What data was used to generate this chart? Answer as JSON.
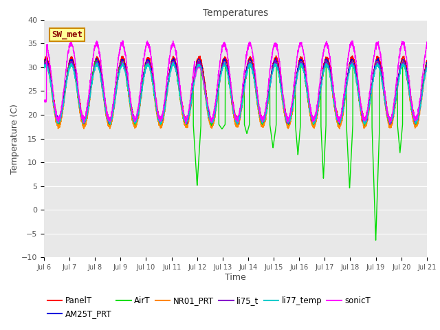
{
  "title": "Temperatures",
  "xlabel": "Time",
  "ylabel": "Temperature (C)",
  "ylim": [
    -10,
    40
  ],
  "xlim_start": 6,
  "xlim_end": 21,
  "x_tick_labels": [
    "Jul 6",
    "Jul 7",
    "Jul 8",
    "Jul 9",
    "Jul 10",
    "Jul 11",
    "Jul 12",
    "Jul 13",
    "Jul 14",
    "Jul 15",
    "Jul 16",
    "Jul 17",
    "Jul 18",
    "Jul 19",
    "Jul 20",
    "Jul 21"
  ],
  "bg_color": "#e8e8e8",
  "fig_color": "#ffffff",
  "grid_color": "#ffffff",
  "yticks": [
    -10,
    -5,
    0,
    5,
    10,
    15,
    20,
    25,
    30,
    35,
    40
  ],
  "series": {
    "PanelT": {
      "color": "#ff0000",
      "lw": 1.0
    },
    "AM25T_PRT": {
      "color": "#0000dd",
      "lw": 1.0
    },
    "AirT": {
      "color": "#00dd00",
      "lw": 1.0
    },
    "NR01_PRT": {
      "color": "#ff8800",
      "lw": 1.0
    },
    "li75_t": {
      "color": "#8800cc",
      "lw": 1.0
    },
    "li77_temp": {
      "color": "#00cccc",
      "lw": 1.0
    },
    "sonicT": {
      "color": "#ff00ff",
      "lw": 1.0
    }
  },
  "annotation_box": {
    "text": "SW_met",
    "facecolor": "#ffff99",
    "edgecolor": "#cc8800",
    "textcolor": "#880000"
  }
}
